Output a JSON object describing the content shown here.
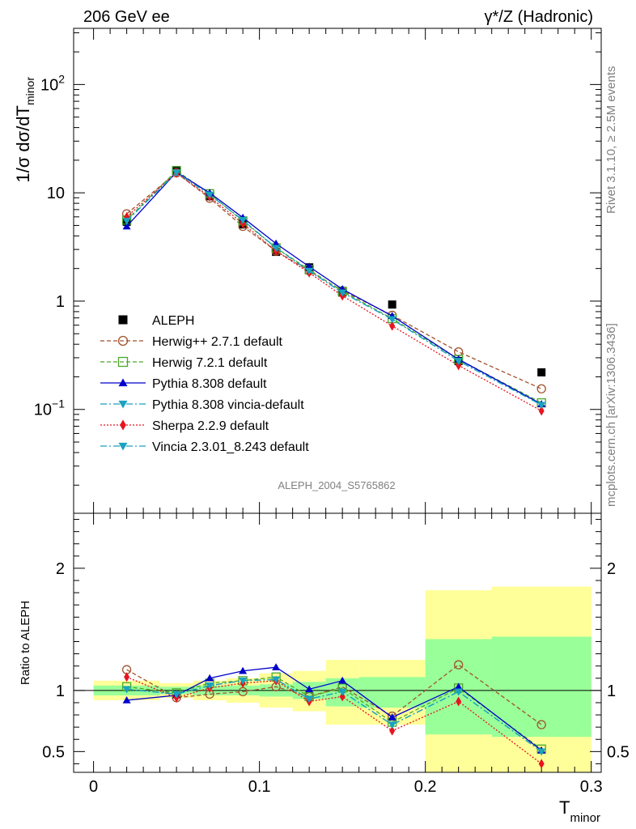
{
  "header": {
    "left": "206 GeV ee",
    "right": "γ*/Z (Hadronic)"
  },
  "side_text": {
    "rivet": "Rivet 3.1.10, ≥ 2.5M events",
    "mcplots": "mcplots.cern.ch [arXiv:1306.3436]"
  },
  "analysis_label": "ALEPH_2004_S5765862",
  "chart_data": [
    {
      "type": "line",
      "panel": "main",
      "y_scale": "log",
      "ylabel": "1/σ  dσ/dT",
      "ylabel_sub": "minor",
      "ylim": [
        0.011,
        330
      ],
      "y_ticks": [
        {
          "v": 0.1,
          "base": "10",
          "exp": "−1"
        },
        {
          "v": 1,
          "base": "1",
          "exp": ""
        },
        {
          "v": 10,
          "base": "10",
          "exp": ""
        },
        {
          "v": 100,
          "base": "10",
          "exp": "2"
        }
      ],
      "xlim": [
        -0.012,
        0.306
      ],
      "x": [
        0.02,
        0.05,
        0.07,
        0.09,
        0.11,
        0.13,
        0.15,
        0.18,
        0.22,
        0.27
      ],
      "legend_position": "lower-left",
      "series": [
        {
          "name": "ALEPH",
          "color": "#000000",
          "marker": "square-filled",
          "line": "none",
          "values": [
            5.4,
            16.2,
            9.3,
            5.1,
            2.85,
            2.05,
            1.2,
            0.93,
            0.28,
            0.22
          ]
        },
        {
          "name": "Herwig++ 2.7.1 default",
          "color": "#a0522d",
          "marker": "circle-open",
          "line": "dashed",
          "values": [
            6.4,
            15.3,
            8.9,
            4.9,
            2.9,
            1.9,
            1.25,
            0.74,
            0.34,
            0.155
          ]
        },
        {
          "name": "Herwig 7.2.1 default",
          "color": "#4aa82a",
          "marker": "square-open",
          "line": "dashed",
          "values": [
            5.6,
            16.0,
            9.8,
            5.5,
            3.1,
            1.95,
            1.23,
            0.69,
            0.29,
            0.115
          ]
        },
        {
          "name": "Pythia 8.308 default",
          "color": "#0000cc",
          "marker": "triangle-up-filled",
          "line": "solid",
          "values": [
            4.9,
            15.5,
            10.0,
            5.9,
            3.4,
            2.08,
            1.29,
            0.73,
            0.29,
            0.112
          ]
        },
        {
          "name": "Pythia 8.308 vincia-default",
          "color": "#1aa2c0",
          "marker": "triangle-down-filled",
          "line": "dashdot",
          "values": [
            5.5,
            15.4,
            9.6,
            5.6,
            3.1,
            1.9,
            1.2,
            0.68,
            0.28,
            0.11
          ]
        },
        {
          "name": "Sherpa 2.2.9 default",
          "color": "#e8141e",
          "marker": "diamond-filled",
          "line": "dotted",
          "values": [
            6.0,
            15.2,
            9.2,
            5.2,
            2.9,
            1.83,
            1.12,
            0.59,
            0.255,
            0.097
          ]
        },
        {
          "name": "Vincia 2.3.01_8.243 default",
          "color": "#1aa2c0",
          "marker": "triangle-down-filled",
          "line": "dashdot",
          "values": [
            5.5,
            15.4,
            9.6,
            5.6,
            3.1,
            1.9,
            1.2,
            0.68,
            0.28,
            0.11
          ]
        }
      ]
    },
    {
      "type": "line",
      "panel": "ratio",
      "ylabel": "Ratio to ALEPH",
      "ylim": [
        0.33,
        2.45
      ],
      "y_ticks": [
        0.5,
        1,
        2
      ],
      "x_ticks": [
        0,
        0.1,
        0.2,
        0.3
      ],
      "x_tick_labels": [
        "0",
        "0.1",
        "0.2",
        "0.3"
      ],
      "xlabel": "T",
      "xlabel_sub": "minor",
      "xlim": [
        -0.012,
        0.306
      ],
      "x": [
        0.02,
        0.05,
        0.07,
        0.09,
        0.11,
        0.13,
        0.15,
        0.18,
        0.22,
        0.27
      ],
      "bands": {
        "edges": [
          0.0,
          0.04,
          0.06,
          0.08,
          0.1,
          0.12,
          0.14,
          0.16,
          0.2,
          0.24,
          0.3
        ],
        "stat_color": "#99ff99",
        "total_color": "#ffff99",
        "stat": [
          [
            0.96,
            1.04
          ],
          [
            0.97,
            1.03
          ],
          [
            0.96,
            1.04
          ],
          [
            0.96,
            1.04
          ],
          [
            0.95,
            1.05
          ],
          [
            0.93,
            1.07
          ],
          [
            0.87,
            1.1
          ],
          [
            0.86,
            1.11
          ],
          [
            0.64,
            1.42
          ],
          [
            0.62,
            1.44
          ]
        ],
        "total": [
          [
            0.92,
            1.08
          ],
          [
            0.94,
            1.06
          ],
          [
            0.92,
            1.08
          ],
          [
            0.9,
            1.1
          ],
          [
            0.86,
            1.14
          ],
          [
            0.83,
            1.16
          ],
          [
            0.72,
            1.25
          ],
          [
            0.72,
            1.25
          ],
          [
            0.33,
            1.82
          ],
          [
            0.33,
            1.85
          ]
        ]
      },
      "series": [
        {
          "name": "Herwig++ 2.7.1 default",
          "color": "#a0522d",
          "marker": "circle-open",
          "line": "dashed",
          "values": [
            1.17,
            0.94,
            0.97,
            0.99,
            1.03,
            0.95,
            1.03,
            0.79,
            1.21,
            0.72
          ]
        },
        {
          "name": "Herwig 7.2.1 default",
          "color": "#4aa82a",
          "marker": "square-open",
          "line": "dashed",
          "values": [
            1.03,
            0.98,
            1.06,
            1.08,
            1.11,
            0.95,
            1.02,
            0.74,
            1.02,
            0.52
          ]
        },
        {
          "name": "Pythia 8.308 default",
          "color": "#0000cc",
          "marker": "triangle-up-filled",
          "line": "solid",
          "values": [
            0.92,
            0.96,
            1.1,
            1.16,
            1.19,
            1.01,
            1.08,
            0.78,
            1.03,
            0.51
          ]
        },
        {
          "name": "Pythia 8.308 vincia-default",
          "color": "#1aa2c0",
          "marker": "triangle-down-filled",
          "line": "dashdot",
          "values": [
            1.01,
            0.97,
            1.04,
            1.08,
            1.09,
            0.93,
            0.99,
            0.72,
            0.99,
            0.5
          ]
        },
        {
          "name": "Sherpa 2.2.9 default",
          "color": "#e8141e",
          "marker": "diamond-filled",
          "line": "dotted",
          "values": [
            1.11,
            0.94,
            1.02,
            1.06,
            1.08,
            0.91,
            0.95,
            0.67,
            0.91,
            0.4
          ]
        },
        {
          "name": "Vincia 2.3.01_8.243 default",
          "color": "#1aa2c0",
          "marker": "triangle-down-filled",
          "line": "dashdot",
          "values": [
            1.01,
            0.97,
            1.04,
            1.08,
            1.09,
            0.93,
            0.99,
            0.72,
            0.99,
            0.5
          ]
        }
      ]
    }
  ]
}
